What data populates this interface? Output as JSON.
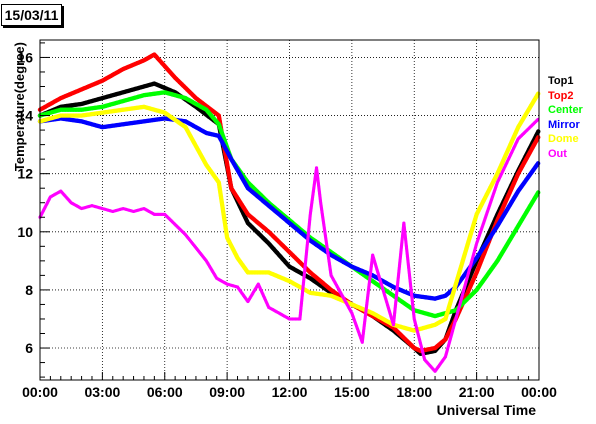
{
  "date_label": "15/03/11",
  "chart_data": {
    "type": "scatter",
    "title": "",
    "xlabel": "Universal Time",
    "ylabel": "Temperature(degree)",
    "xlim": [
      0,
      24
    ],
    "ylim": [
      4.9,
      16.6
    ],
    "grid": true,
    "legend": "right",
    "x_ticks": [
      0,
      3,
      6,
      9,
      12,
      15,
      18,
      21,
      24
    ],
    "x_tick_labels": [
      "00:00",
      "03:00",
      "06:00",
      "09:00",
      "12:00",
      "15:00",
      "18:00",
      "21:00",
      "00:00"
    ],
    "y_ticks": [
      6,
      8,
      10,
      12,
      14,
      16
    ],
    "y_tick_labels": [
      "6",
      "8",
      "10",
      "12",
      "14",
      "16"
    ],
    "series": [
      {
        "name": "Top1",
        "color": "#000000",
        "points": [
          [
            0,
            14.0
          ],
          [
            1,
            14.3
          ],
          [
            2,
            14.4
          ],
          [
            3,
            14.6
          ],
          [
            4,
            14.8
          ],
          [
            5,
            15.0
          ],
          [
            5.5,
            15.1
          ],
          [
            6.5,
            14.8
          ],
          [
            7.5,
            14.3
          ],
          [
            8.6,
            13.7
          ],
          [
            9.2,
            11.5
          ],
          [
            10,
            10.3
          ],
          [
            11,
            9.6
          ],
          [
            12,
            8.8
          ],
          [
            13,
            8.4
          ],
          [
            14,
            7.9
          ],
          [
            15,
            7.5
          ],
          [
            16,
            7.1
          ],
          [
            17,
            6.6
          ],
          [
            18,
            6.0
          ],
          [
            18.3,
            5.8
          ],
          [
            19,
            5.9
          ],
          [
            19.5,
            6.3
          ],
          [
            20,
            7.3
          ],
          [
            21,
            9.0
          ],
          [
            22,
            10.6
          ],
          [
            23,
            12.1
          ],
          [
            24,
            13.5
          ]
        ]
      },
      {
        "name": "Top2",
        "color": "#ff0000",
        "points": [
          [
            0,
            14.2
          ],
          [
            1,
            14.6
          ],
          [
            2,
            14.9
          ],
          [
            3,
            15.2
          ],
          [
            4,
            15.6
          ],
          [
            5,
            15.9
          ],
          [
            5.5,
            16.1
          ],
          [
            6.5,
            15.3
          ],
          [
            7.5,
            14.6
          ],
          [
            8.6,
            14.0
          ],
          [
            9.2,
            11.5
          ],
          [
            10,
            10.6
          ],
          [
            11,
            10.0
          ],
          [
            12,
            9.3
          ],
          [
            13,
            8.6
          ],
          [
            14,
            8.0
          ],
          [
            15,
            7.5
          ],
          [
            16,
            7.1
          ],
          [
            17,
            6.7
          ],
          [
            18,
            6.0
          ],
          [
            18.3,
            5.9
          ],
          [
            19,
            6.0
          ],
          [
            19.5,
            6.3
          ],
          [
            20,
            7.0
          ],
          [
            21,
            8.6
          ],
          [
            22,
            10.4
          ],
          [
            23,
            12.0
          ],
          [
            24,
            13.3
          ]
        ]
      },
      {
        "name": "Center",
        "color": "#00ff00",
        "points": [
          [
            0,
            14.0
          ],
          [
            1,
            14.2
          ],
          [
            2,
            14.2
          ],
          [
            3,
            14.3
          ],
          [
            4,
            14.5
          ],
          [
            5,
            14.7
          ],
          [
            6,
            14.8
          ],
          [
            7,
            14.6
          ],
          [
            8,
            14.2
          ],
          [
            8.6,
            13.7
          ],
          [
            9.2,
            12.5
          ],
          [
            10,
            11.7
          ],
          [
            11,
            11.0
          ],
          [
            12,
            10.4
          ],
          [
            13,
            9.8
          ],
          [
            14,
            9.3
          ],
          [
            15,
            8.8
          ],
          [
            16,
            8.3
          ],
          [
            17,
            7.8
          ],
          [
            18,
            7.3
          ],
          [
            19,
            7.1
          ],
          [
            20,
            7.3
          ],
          [
            21,
            8.0
          ],
          [
            22,
            9.0
          ],
          [
            23,
            10.2
          ],
          [
            24,
            11.4
          ]
        ]
      },
      {
        "name": "Mirror",
        "color": "#0000ff",
        "points": [
          [
            0,
            13.8
          ],
          [
            1,
            13.9
          ],
          [
            2,
            13.8
          ],
          [
            3,
            13.6
          ],
          [
            4,
            13.7
          ],
          [
            5,
            13.8
          ],
          [
            6,
            13.9
          ],
          [
            7,
            13.8
          ],
          [
            8,
            13.4
          ],
          [
            8.6,
            13.3
          ],
          [
            9.2,
            12.5
          ],
          [
            10,
            11.5
          ],
          [
            11,
            10.9
          ],
          [
            12,
            10.3
          ],
          [
            13,
            9.7
          ],
          [
            14,
            9.2
          ],
          [
            15,
            8.8
          ],
          [
            16,
            8.5
          ],
          [
            17,
            8.1
          ],
          [
            18,
            7.8
          ],
          [
            19,
            7.7
          ],
          [
            19.5,
            7.8
          ],
          [
            20,
            8.1
          ],
          [
            21,
            9.1
          ],
          [
            22,
            10.2
          ],
          [
            23,
            11.4
          ],
          [
            24,
            12.4
          ]
        ]
      },
      {
        "name": "Dome",
        "color": "#ffff00",
        "points": [
          [
            0,
            13.8
          ],
          [
            1,
            14.0
          ],
          [
            2,
            14.0
          ],
          [
            3,
            14.1
          ],
          [
            4,
            14.2
          ],
          [
            5,
            14.3
          ],
          [
            6,
            14.1
          ],
          [
            7,
            13.6
          ],
          [
            8,
            12.3
          ],
          [
            8.6,
            11.7
          ],
          [
            9,
            9.8
          ],
          [
            9.5,
            9.1
          ],
          [
            10,
            8.6
          ],
          [
            11,
            8.6
          ],
          [
            12,
            8.3
          ],
          [
            13,
            7.9
          ],
          [
            14,
            7.8
          ],
          [
            15,
            7.5
          ],
          [
            16,
            7.2
          ],
          [
            17,
            6.8
          ],
          [
            18,
            6.6
          ],
          [
            19,
            6.8
          ],
          [
            19.5,
            7.0
          ],
          [
            20,
            8.2
          ],
          [
            21,
            10.6
          ],
          [
            22,
            12.0
          ],
          [
            23,
            13.6
          ],
          [
            24,
            14.8
          ]
        ]
      },
      {
        "name": "Out",
        "color": "#ff00ff",
        "points": [
          [
            0,
            10.5
          ],
          [
            0.5,
            11.2
          ],
          [
            1,
            11.4
          ],
          [
            1.5,
            11.0
          ],
          [
            2,
            10.8
          ],
          [
            2.5,
            10.9
          ],
          [
            3,
            10.8
          ],
          [
            3.5,
            10.7
          ],
          [
            4,
            10.8
          ],
          [
            4.5,
            10.7
          ],
          [
            5,
            10.8
          ],
          [
            5.5,
            10.6
          ],
          [
            6,
            10.6
          ],
          [
            7,
            9.9
          ],
          [
            8,
            9.0
          ],
          [
            8.5,
            8.4
          ],
          [
            9,
            8.2
          ],
          [
            9.5,
            8.1
          ],
          [
            10,
            7.6
          ],
          [
            10.5,
            8.2
          ],
          [
            11,
            7.4
          ],
          [
            11.5,
            7.2
          ],
          [
            12,
            7.0
          ],
          [
            12.5,
            7.0
          ],
          [
            13,
            10.6
          ],
          [
            13.3,
            12.2
          ],
          [
            13.5,
            11.0
          ],
          [
            14,
            8.5
          ],
          [
            15,
            7.2
          ],
          [
            15.5,
            6.2
          ],
          [
            16,
            9.2
          ],
          [
            16.5,
            8.0
          ],
          [
            17,
            6.8
          ],
          [
            17.5,
            10.3
          ],
          [
            18,
            7.0
          ],
          [
            18.5,
            5.6
          ],
          [
            19,
            5.2
          ],
          [
            19.5,
            5.7
          ],
          [
            20,
            7.0
          ],
          [
            21,
            9.6
          ],
          [
            22,
            11.7
          ],
          [
            23,
            13.2
          ],
          [
            24,
            13.9
          ]
        ]
      }
    ]
  }
}
